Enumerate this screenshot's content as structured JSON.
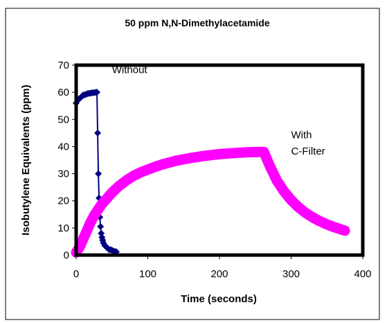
{
  "chart_data": {
    "type": "scatter",
    "title": "50 ppm N,N-Dimethylacetamide",
    "xlabel": "Time (seconds)",
    "ylabel": "Isobutylene Equivalents (ppm)",
    "xlim": [
      0,
      400
    ],
    "ylim": [
      0,
      70
    ],
    "xticks": [
      "0",
      "100",
      "200",
      "300",
      "400"
    ],
    "yticks": [
      "0",
      "10",
      "20",
      "30",
      "40",
      "50",
      "60",
      "70"
    ],
    "grid": false,
    "legend": "none",
    "annotations": [
      {
        "text": "Without",
        "x": 50,
        "y": 67
      },
      {
        "text": "With",
        "x": 300,
        "y": 43
      },
      {
        "text": "C-Filter",
        "x": 300,
        "y": 37
      }
    ],
    "series": [
      {
        "color": "#000080",
        "marker": "diamond",
        "x": [
          0,
          2,
          4,
          6,
          8,
          10,
          12,
          14,
          16,
          18,
          20,
          22,
          24,
          26,
          28,
          29,
          30,
          31,
          32,
          33,
          34,
          35,
          36,
          37,
          38,
          40,
          42,
          44,
          46,
          48,
          50,
          52,
          54,
          56
        ],
        "y": [
          56,
          57,
          57.5,
          58,
          58.5,
          59,
          59,
          59.3,
          59.5,
          59.6,
          59.7,
          59.8,
          59.8,
          59.9,
          60,
          60,
          45,
          30,
          21,
          14,
          10.5,
          8,
          6.5,
          5.5,
          4.5,
          3.5,
          3,
          2.5,
          2,
          2,
          1.8,
          1.5,
          1.3,
          1.2
        ]
      },
      {
        "color": "#FF00FF",
        "marker": "circle",
        "x": [
          0,
          5,
          10,
          15,
          20,
          25,
          30,
          35,
          40,
          50,
          60,
          70,
          80,
          90,
          100,
          110,
          120,
          140,
          160,
          180,
          200,
          220,
          240,
          255,
          262,
          270,
          280,
          290,
          300,
          310,
          320,
          330,
          340,
          350,
          360,
          375
        ],
        "y": [
          1,
          3,
          6,
          9,
          12,
          14.5,
          16.5,
          18.5,
          20,
          23,
          25.5,
          27.5,
          29.2,
          30.5,
          31.5,
          32.5,
          33.4,
          34.8,
          35.8,
          36.6,
          37.2,
          37.6,
          37.9,
          38,
          38,
          33,
          27.5,
          23.5,
          20.3,
          17.7,
          15.6,
          13.9,
          12.5,
          11.3,
          10.3,
          9
        ]
      }
    ]
  }
}
